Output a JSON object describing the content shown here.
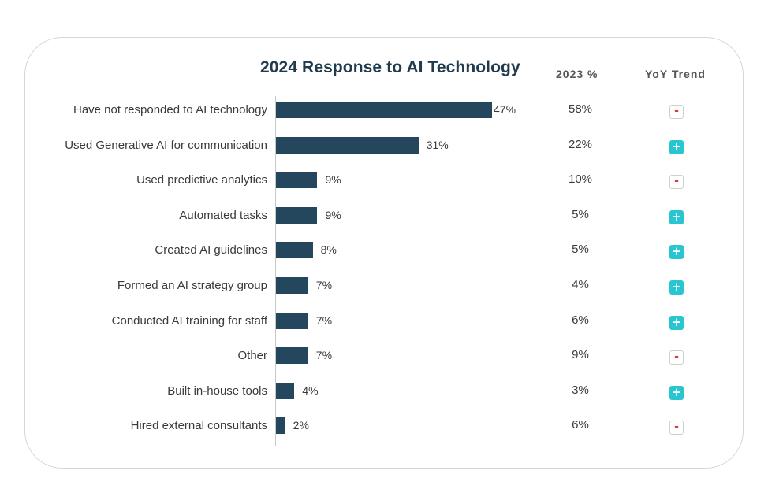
{
  "colors": {
    "bar": "#24475e",
    "up": "#29c5d0",
    "down": "#d23c3c"
  },
  "headers": {
    "prev_year": "2023 %",
    "trend": "YoY Trend"
  },
  "chart_data": {
    "type": "bar",
    "orientation": "horizontal",
    "title": "2024 Response to AI Technology",
    "xlabel": "",
    "ylabel": "",
    "xlim": [
      0,
      47
    ],
    "categories": [
      "Have not responded to AI technology",
      "Used Generative AI for communication",
      "Used predictive analytics",
      "Automated tasks",
      "Created AI guidelines",
      "Formed an AI strategy group",
      "Conducted AI training for staff",
      "Other",
      "Built in-house tools",
      "Hired external consultants"
    ],
    "values": [
      47,
      31,
      9,
      9,
      8,
      7,
      7,
      7,
      4,
      2
    ],
    "value_labels": [
      "47%",
      "31%",
      "9%",
      "9%",
      "8%",
      "7%",
      "7%",
      "7%",
      "4%",
      "2%"
    ],
    "prev_year_labels": [
      "58%",
      "22%",
      "10%",
      "5%",
      "5%",
      "4%",
      "6%",
      "9%",
      "3%",
      "6%"
    ],
    "trend": [
      "down",
      "up",
      "down",
      "up",
      "up",
      "up",
      "up",
      "down",
      "up",
      "down"
    ],
    "trend_symbols": {
      "up": "+",
      "down": "-"
    }
  }
}
